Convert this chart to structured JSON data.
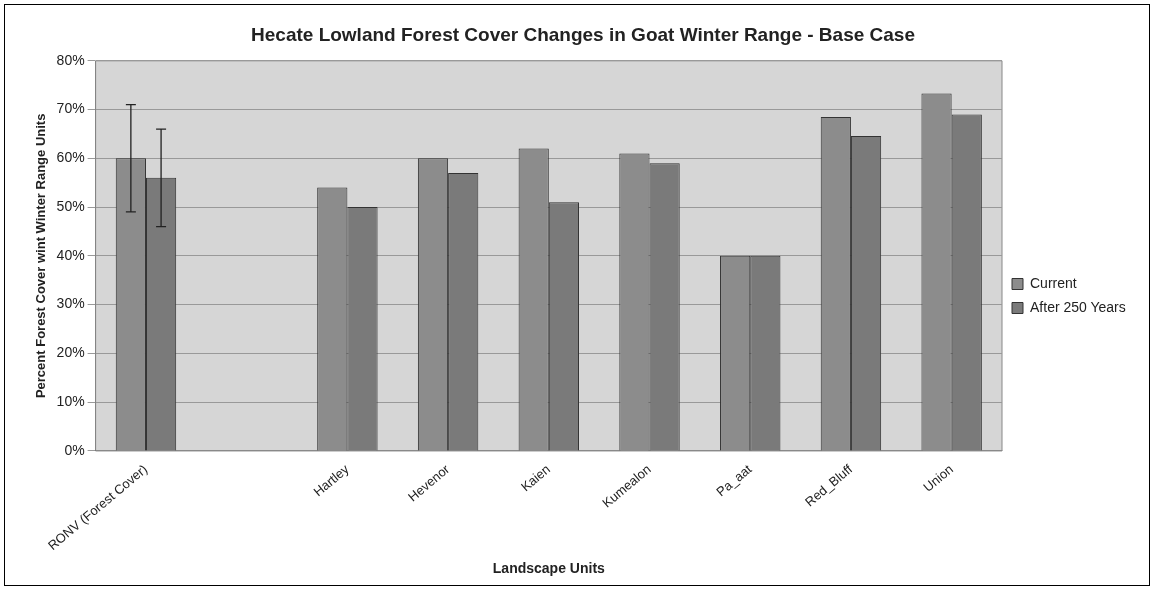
{
  "chart_data": {
    "type": "bar",
    "title": "Hecate Lowland Forest Cover Changes in Goat Winter Range - Base Case",
    "xlabel": "Landscape Units",
    "ylabel": "Percent Forest Cover wint Winter Range Units",
    "categories": [
      "RONV (Forest Cover)",
      null,
      "Hartley",
      "Hevenor",
      "Kaien",
      "Kumealon",
      "Pa_aat",
      "Red_Bluff",
      "Union"
    ],
    "series": [
      {
        "name": "Current",
        "color": "#8c8c8c",
        "values": [
          60,
          null,
          54,
          60,
          62,
          61,
          40,
          68.5,
          73.3
        ],
        "errors": [
          [
            49,
            71
          ],
          null,
          null,
          null,
          null,
          null,
          null,
          null,
          null
        ]
      },
      {
        "name": "After 250 Years",
        "color": "#7a7a7a",
        "values": [
          56,
          null,
          50,
          57,
          51,
          59,
          40,
          64.6,
          69
        ],
        "errors": [
          [
            46,
            66
          ],
          null,
          null,
          null,
          null,
          null,
          null,
          null,
          null
        ]
      }
    ],
    "ylim": [
      0,
      80
    ],
    "yticks": [
      {
        "value": 0,
        "label": "0%"
      },
      {
        "value": 10,
        "label": "10%"
      },
      {
        "value": 20,
        "label": "20%"
      },
      {
        "value": 30,
        "label": "30%"
      },
      {
        "value": 40,
        "label": "40%"
      },
      {
        "value": 50,
        "label": "50%"
      },
      {
        "value": 60,
        "label": "60%"
      },
      {
        "value": 70,
        "label": "70%"
      },
      {
        "value": 80,
        "label": "80%"
      }
    ],
    "grid": "y",
    "legend": "right"
  }
}
